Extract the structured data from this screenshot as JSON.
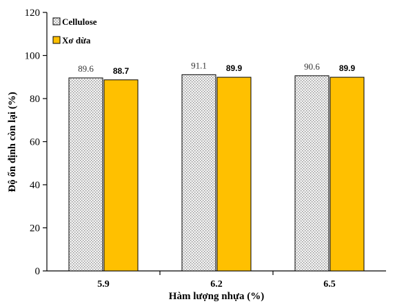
{
  "chart_data": {
    "type": "bar",
    "categories": [
      "5.9",
      "6.2",
      "6.5"
    ],
    "series": [
      {
        "name": "Cellulose",
        "values": [
          89.6,
          91.1,
          90.6
        ],
        "labels": [
          "89.6",
          "91.1",
          "90.6"
        ],
        "color": "#d9d9d9",
        "pattern": "dotted"
      },
      {
        "name": "Xơ dừa",
        "values": [
          88.7,
          89.9,
          89.9
        ],
        "labels": [
          "88.7",
          "89.9",
          "89.9"
        ],
        "color": "#ffc000",
        "pattern": "solid"
      }
    ],
    "xlabel": "Hàm lượng nhựa (%)",
    "ylabel": "Độ ổn định còn lại  (%)",
    "ylim": [
      0,
      120
    ],
    "yticks": [
      "0",
      "20",
      "40",
      "60",
      "80",
      "100",
      "120"
    ],
    "grid": false,
    "legend_position": "top-left"
  }
}
